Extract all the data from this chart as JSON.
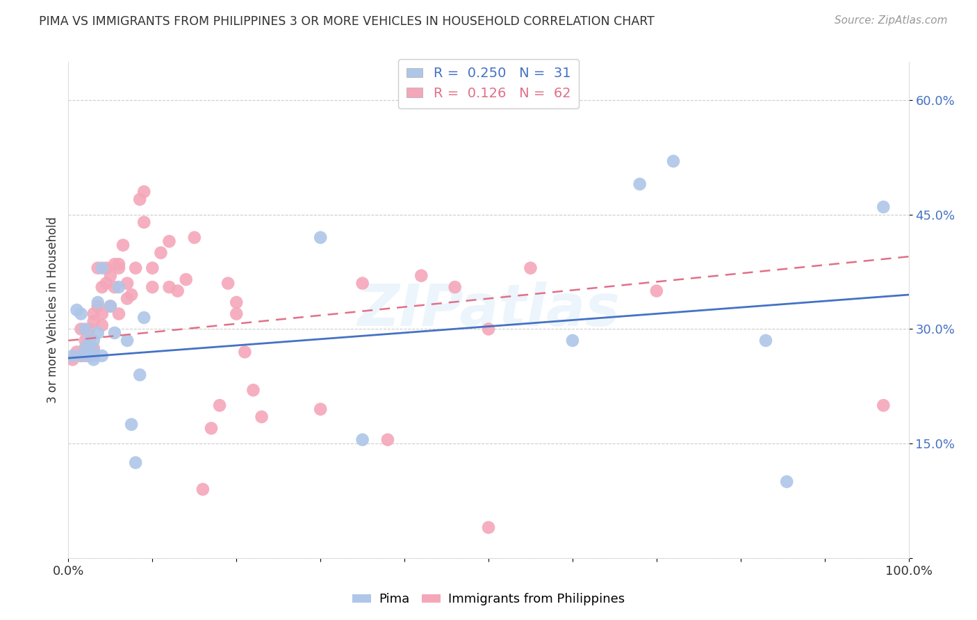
{
  "title": "PIMA VS IMMIGRANTS FROM PHILIPPINES 3 OR MORE VEHICLES IN HOUSEHOLD CORRELATION CHART",
  "source": "Source: ZipAtlas.com",
  "ylabel": "3 or more Vehicles in Household",
  "xlim": [
    0.0,
    1.0
  ],
  "ylim": [
    0.0,
    0.65
  ],
  "x_tick_positions": [
    0.0,
    0.1,
    0.2,
    0.3,
    0.4,
    0.5,
    0.6,
    0.7,
    0.8,
    0.9,
    1.0
  ],
  "x_tick_labels": [
    "0.0%",
    "",
    "",
    "",
    "",
    "",
    "",
    "",
    "",
    "",
    "100.0%"
  ],
  "y_tick_positions": [
    0.0,
    0.15,
    0.3,
    0.45,
    0.6
  ],
  "y_tick_labels": [
    "",
    "15.0%",
    "30.0%",
    "45.0%",
    "60.0%"
  ],
  "r_pima": 0.25,
  "n_pima": 31,
  "r_philippines": 0.126,
  "n_philippines": 62,
  "pima_color": "#aec6e8",
  "philippines_color": "#f4a7b9",
  "pima_line_color": "#4472c4",
  "philippines_line_color": "#e07088",
  "background_color": "#ffffff",
  "grid_color": "#cccccc",
  "watermark": "ZIPatlas",
  "pima_x": [
    0.005,
    0.01,
    0.015,
    0.015,
    0.02,
    0.02,
    0.025,
    0.025,
    0.03,
    0.03,
    0.03,
    0.035,
    0.035,
    0.04,
    0.04,
    0.05,
    0.055,
    0.06,
    0.07,
    0.075,
    0.08,
    0.085,
    0.09,
    0.3,
    0.35,
    0.6,
    0.68,
    0.72,
    0.83,
    0.855,
    0.97
  ],
  "pima_y": [
    0.265,
    0.325,
    0.32,
    0.265,
    0.3,
    0.275,
    0.265,
    0.285,
    0.27,
    0.285,
    0.26,
    0.295,
    0.335,
    0.38,
    0.265,
    0.33,
    0.295,
    0.355,
    0.285,
    0.175,
    0.125,
    0.24,
    0.315,
    0.42,
    0.155,
    0.285,
    0.49,
    0.52,
    0.285,
    0.1,
    0.46
  ],
  "philippines_x": [
    0.005,
    0.01,
    0.015,
    0.015,
    0.02,
    0.02,
    0.02,
    0.025,
    0.025,
    0.03,
    0.03,
    0.03,
    0.03,
    0.035,
    0.035,
    0.04,
    0.04,
    0.04,
    0.045,
    0.045,
    0.05,
    0.05,
    0.055,
    0.055,
    0.06,
    0.06,
    0.06,
    0.065,
    0.07,
    0.07,
    0.075,
    0.08,
    0.085,
    0.09,
    0.09,
    0.1,
    0.1,
    0.11,
    0.12,
    0.12,
    0.13,
    0.14,
    0.15,
    0.16,
    0.17,
    0.18,
    0.19,
    0.2,
    0.2,
    0.21,
    0.22,
    0.23,
    0.3,
    0.35,
    0.38,
    0.42,
    0.46,
    0.5,
    0.5,
    0.55,
    0.7,
    0.97
  ],
  "philippines_y": [
    0.26,
    0.27,
    0.265,
    0.3,
    0.285,
    0.275,
    0.265,
    0.3,
    0.265,
    0.31,
    0.32,
    0.265,
    0.275,
    0.38,
    0.33,
    0.32,
    0.305,
    0.355,
    0.36,
    0.38,
    0.33,
    0.37,
    0.385,
    0.355,
    0.38,
    0.385,
    0.32,
    0.41,
    0.34,
    0.36,
    0.345,
    0.38,
    0.47,
    0.48,
    0.44,
    0.355,
    0.38,
    0.4,
    0.355,
    0.415,
    0.35,
    0.365,
    0.42,
    0.09,
    0.17,
    0.2,
    0.36,
    0.335,
    0.32,
    0.27,
    0.22,
    0.185,
    0.195,
    0.36,
    0.155,
    0.37,
    0.355,
    0.04,
    0.3,
    0.38,
    0.35,
    0.2
  ],
  "pima_line_x": [
    0.0,
    1.0
  ],
  "pima_line_y": [
    0.262,
    0.345
  ],
  "philippines_line_x": [
    0.0,
    1.0
  ],
  "philippines_line_y": [
    0.285,
    0.395
  ]
}
